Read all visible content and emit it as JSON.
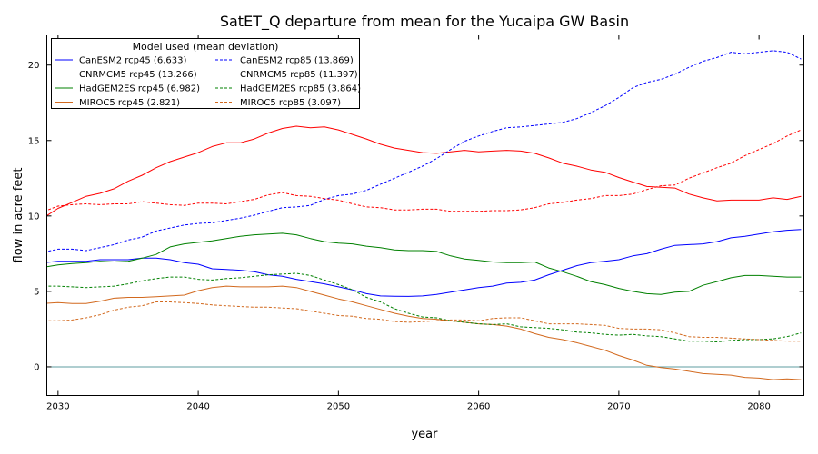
{
  "chart_data": {
    "type": "line",
    "title": "SatET_Q departure from mean for the Yucaipa GW Basin",
    "xlabel": "year",
    "ylabel": "flow in acre feet",
    "xlim": [
      2029.2,
      2083.2
    ],
    "ylim": [
      -1.9,
      22.0
    ],
    "xticks": [
      2030,
      2040,
      2050,
      2060,
      2070,
      2080
    ],
    "yticks": [
      0,
      5,
      10,
      15,
      20
    ],
    "grid": false,
    "legend_title": "Model used (mean deviation)",
    "legend_position": "top-left",
    "reference_line": 0,
    "reference_color": "#5f9ea0",
    "x": [
      2029,
      2030,
      2031,
      2032,
      2033,
      2034,
      2035,
      2036,
      2037,
      2038,
      2039,
      2040,
      2041,
      2042,
      2043,
      2044,
      2045,
      2046,
      2047,
      2048,
      2049,
      2050,
      2051,
      2052,
      2053,
      2054,
      2055,
      2056,
      2057,
      2058,
      2059,
      2060,
      2061,
      2062,
      2063,
      2064,
      2065,
      2066,
      2067,
      2068,
      2069,
      2070,
      2071,
      2072,
      2073,
      2074,
      2075,
      2076,
      2077,
      2078,
      2079,
      2080,
      2081,
      2082,
      2083
    ],
    "series": [
      {
        "name": "CanESM2 rcp45 (6.633)",
        "color": "#0000ff",
        "dash": "solid",
        "values": [
          6.9,
          7.0,
          7.0,
          7.0,
          7.1,
          7.1,
          7.1,
          7.2,
          7.2,
          7.1,
          6.9,
          6.8,
          6.5,
          6.45,
          6.4,
          6.3,
          6.1,
          6.0,
          5.8,
          5.65,
          5.5,
          5.3,
          5.1,
          4.85,
          4.7,
          4.68,
          4.67,
          4.7,
          4.8,
          4.95,
          5.1,
          5.25,
          5.35,
          5.55,
          5.6,
          5.75,
          6.1,
          6.4,
          6.7,
          6.9,
          7.0,
          7.1,
          7.35,
          7.5,
          7.8,
          8.05,
          8.1,
          8.15,
          8.3,
          8.55,
          8.65,
          8.8,
          8.95,
          9.05,
          9.1
        ]
      },
      {
        "name": "CNRMCM5 rcp45 (13.266)",
        "color": "#ff0000",
        "dash": "solid",
        "values": [
          9.9,
          10.5,
          10.9,
          11.3,
          11.5,
          11.8,
          12.3,
          12.7,
          13.2,
          13.6,
          13.9,
          14.2,
          14.6,
          14.85,
          14.85,
          15.1,
          15.5,
          15.8,
          15.95,
          15.85,
          15.9,
          15.7,
          15.4,
          15.1,
          14.75,
          14.5,
          14.35,
          14.2,
          14.15,
          14.25,
          14.35,
          14.25,
          14.3,
          14.35,
          14.3,
          14.15,
          13.85,
          13.5,
          13.3,
          13.05,
          12.9,
          12.55,
          12.25,
          11.95,
          11.9,
          11.85,
          11.45,
          11.2,
          11.0,
          11.05,
          11.05,
          11.05,
          11.2,
          11.1,
          11.3
        ]
      },
      {
        "name": "HadGEM2ES rcp45 (6.982)",
        "color": "#008000",
        "dash": "solid",
        "values": [
          6.6,
          6.75,
          6.85,
          6.9,
          7.0,
          6.95,
          7.0,
          7.2,
          7.45,
          7.95,
          8.15,
          8.25,
          8.35,
          8.5,
          8.65,
          8.75,
          8.8,
          8.85,
          8.75,
          8.5,
          8.3,
          8.2,
          8.15,
          8.0,
          7.9,
          7.75,
          7.7,
          7.7,
          7.65,
          7.35,
          7.15,
          7.05,
          6.95,
          6.9,
          6.9,
          6.95,
          6.55,
          6.3,
          6.0,
          5.65,
          5.45,
          5.2,
          5.0,
          4.85,
          4.8,
          4.95,
          5.0,
          5.4,
          5.65,
          5.9,
          6.05,
          6.05,
          6.0,
          5.95,
          5.95
        ]
      },
      {
        "name": "MIROC5 rcp45 (2.821)",
        "color": "#d2691e",
        "dash": "solid",
        "values": [
          4.2,
          4.25,
          4.2,
          4.2,
          4.35,
          4.55,
          4.6,
          4.6,
          4.65,
          4.7,
          4.75,
          5.05,
          5.25,
          5.35,
          5.3,
          5.3,
          5.3,
          5.35,
          5.25,
          5.0,
          4.75,
          4.5,
          4.3,
          4.05,
          3.8,
          3.55,
          3.35,
          3.2,
          3.15,
          3.05,
          2.95,
          2.85,
          2.8,
          2.7,
          2.5,
          2.2,
          1.95,
          1.8,
          1.6,
          1.35,
          1.1,
          0.75,
          0.45,
          0.1,
          -0.05,
          -0.15,
          -0.3,
          -0.45,
          -0.5,
          -0.55,
          -0.7,
          -0.75,
          -0.85,
          -0.8,
          -0.85
        ]
      },
      {
        "name": "CanESM2 rcp85 (13.869)",
        "color": "#0000ff",
        "dash": "dashed",
        "values": [
          7.6,
          7.8,
          7.8,
          7.7,
          7.9,
          8.1,
          8.4,
          8.6,
          9.0,
          9.2,
          9.4,
          9.5,
          9.55,
          9.7,
          9.85,
          10.05,
          10.3,
          10.55,
          10.6,
          10.7,
          11.1,
          11.35,
          11.45,
          11.7,
          12.1,
          12.5,
          12.9,
          13.3,
          13.8,
          14.4,
          14.95,
          15.3,
          15.6,
          15.85,
          15.9,
          16.0,
          16.1,
          16.2,
          16.45,
          16.85,
          17.3,
          17.85,
          18.5,
          18.85,
          19.05,
          19.4,
          19.85,
          20.25,
          20.5,
          20.85,
          20.75,
          20.85,
          20.95,
          20.85,
          20.4
        ]
      },
      {
        "name": "CNRMCM5 rcp85 (11.397)",
        "color": "#ff0000",
        "dash": "dashed",
        "values": [
          10.3,
          10.65,
          10.75,
          10.8,
          10.75,
          10.8,
          10.8,
          10.95,
          10.85,
          10.75,
          10.7,
          10.85,
          10.85,
          10.8,
          10.95,
          11.1,
          11.4,
          11.55,
          11.35,
          11.3,
          11.15,
          11.05,
          10.8,
          10.6,
          10.55,
          10.4,
          10.4,
          10.45,
          10.45,
          10.3,
          10.3,
          10.3,
          10.35,
          10.35,
          10.4,
          10.55,
          10.8,
          10.9,
          11.05,
          11.15,
          11.35,
          11.35,
          11.45,
          11.75,
          12.0,
          12.05,
          12.5,
          12.85,
          13.2,
          13.5,
          14.0,
          14.4,
          14.8,
          15.3,
          15.7
        ]
      },
      {
        "name": "HadGEM2ES rcp85 (3.864)",
        "color": "#008000",
        "dash": "dashed",
        "values": [
          5.35,
          5.35,
          5.3,
          5.25,
          5.3,
          5.35,
          5.5,
          5.7,
          5.85,
          5.95,
          5.95,
          5.8,
          5.75,
          5.85,
          5.9,
          6.0,
          6.1,
          6.15,
          6.2,
          6.05,
          5.75,
          5.45,
          5.1,
          4.6,
          4.3,
          3.85,
          3.55,
          3.3,
          3.25,
          3.05,
          2.95,
          2.85,
          2.8,
          2.85,
          2.65,
          2.6,
          2.55,
          2.45,
          2.3,
          2.25,
          2.15,
          2.1,
          2.15,
          2.05,
          2.0,
          1.85,
          1.7,
          1.7,
          1.65,
          1.75,
          1.8,
          1.8,
          1.85,
          2.0,
          2.25
        ]
      },
      {
        "name": "MIROC5 rcp85 (3.097)",
        "color": "#d2691e",
        "dash": "dashed",
        "values": [
          3.05,
          3.05,
          3.1,
          3.25,
          3.45,
          3.75,
          3.95,
          4.05,
          4.3,
          4.3,
          4.25,
          4.2,
          4.1,
          4.05,
          4.0,
          3.95,
          3.95,
          3.9,
          3.85,
          3.7,
          3.55,
          3.4,
          3.35,
          3.2,
          3.15,
          3.0,
          2.95,
          3.0,
          3.05,
          3.1,
          3.1,
          3.05,
          3.2,
          3.25,
          3.25,
          3.05,
          2.85,
          2.85,
          2.85,
          2.8,
          2.75,
          2.55,
          2.5,
          2.5,
          2.45,
          2.25,
          2.0,
          1.95,
          1.95,
          1.9,
          1.85,
          1.8,
          1.75,
          1.7,
          1.7
        ]
      }
    ]
  }
}
